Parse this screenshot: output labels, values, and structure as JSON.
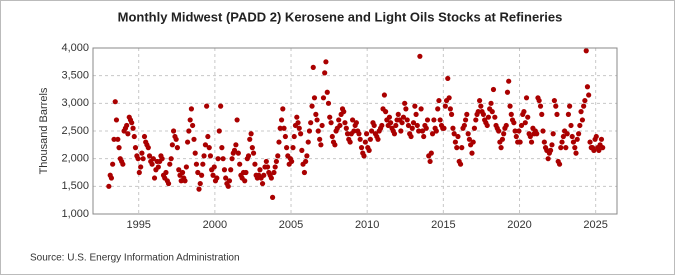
{
  "chart_data": {
    "type": "scatter",
    "title": "Monthly Midwest (PADD 2) Kerosene and Light Oils Stocks at Refineries",
    "y_label": "Thousand Barrels",
    "source": "Source: U.S. Energy Information Administration",
    "color": "#aa0000",
    "grid": true,
    "xlim": [
      1992,
      2026.4
    ],
    "xticks": [
      1995,
      2000,
      2005,
      2010,
      2015,
      2020,
      2025
    ],
    "ylim": [
      1000,
      4000
    ],
    "yticks": [
      {
        "value": 1000,
        "label": "1,000"
      },
      {
        "value": 1500,
        "label": "1,500"
      },
      {
        "value": 2000,
        "label": "2,000"
      },
      {
        "value": 2500,
        "label": "2,500"
      },
      {
        "value": 3000,
        "label": "3,000"
      },
      {
        "value": 3500,
        "label": "3,500"
      },
      {
        "value": 4000,
        "label": "4,000"
      }
    ],
    "x": [
      1993.04,
      1993.13,
      1993.21,
      1993.29,
      1993.38,
      1993.46,
      1993.54,
      1993.63,
      1993.71,
      1993.79,
      1993.88,
      1993.96,
      1994.04,
      1994.13,
      1994.21,
      1994.29,
      1994.38,
      1994.46,
      1994.54,
      1994.63,
      1994.71,
      1994.79,
      1994.88,
      1994.96,
      1995.04,
      1995.13,
      1995.21,
      1995.29,
      1995.38,
      1995.46,
      1995.54,
      1995.63,
      1995.71,
      1995.79,
      1995.88,
      1995.96,
      1996.04,
      1996.13,
      1996.21,
      1996.29,
      1996.38,
      1996.46,
      1996.54,
      1996.63,
      1996.71,
      1996.79,
      1996.88,
      1996.96,
      1997.04,
      1997.13,
      1997.21,
      1997.29,
      1997.38,
      1997.46,
      1997.54,
      1997.63,
      1997.71,
      1997.79,
      1997.88,
      1997.96,
      1998.04,
      1998.13,
      1998.21,
      1998.29,
      1998.38,
      1998.46,
      1998.54,
      1998.63,
      1998.71,
      1998.79,
      1998.88,
      1998.96,
      1999.04,
      1999.13,
      1999.21,
      1999.29,
      1999.38,
      1999.46,
      1999.54,
      1999.63,
      1999.71,
      1999.79,
      1999.88,
      1999.96,
      2000.04,
      2000.13,
      2000.21,
      2000.29,
      2000.38,
      2000.46,
      2000.54,
      2000.63,
      2000.71,
      2000.79,
      2000.88,
      2000.96,
      2001.04,
      2001.13,
      2001.21,
      2001.29,
      2001.38,
      2001.46,
      2001.54,
      2001.63,
      2001.71,
      2001.79,
      2001.88,
      2001.96,
      2002.04,
      2002.13,
      2002.21,
      2002.29,
      2002.38,
      2002.46,
      2002.54,
      2002.63,
      2002.71,
      2002.79,
      2002.88,
      2002.96,
      2003.04,
      2003.13,
      2003.21,
      2003.29,
      2003.38,
      2003.46,
      2003.54,
      2003.63,
      2003.71,
      2003.79,
      2003.88,
      2003.96,
      2004.04,
      2004.13,
      2004.21,
      2004.29,
      2004.38,
      2004.46,
      2004.54,
      2004.63,
      2004.71,
      2004.79,
      2004.88,
      2004.96,
      2005.04,
      2005.13,
      2005.21,
      2005.29,
      2005.38,
      2005.46,
      2005.54,
      2005.63,
      2005.71,
      2005.79,
      2005.88,
      2005.96,
      2006.04,
      2006.13,
      2006.21,
      2006.29,
      2006.38,
      2006.46,
      2006.54,
      2006.63,
      2006.71,
      2006.79,
      2006.88,
      2006.96,
      2007.04,
      2007.13,
      2007.21,
      2007.29,
      2007.38,
      2007.46,
      2007.54,
      2007.63,
      2007.71,
      2007.79,
      2007.88,
      2007.96,
      2008.04,
      2008.13,
      2008.21,
      2008.29,
      2008.38,
      2008.46,
      2008.54,
      2008.63,
      2008.71,
      2008.79,
      2008.88,
      2008.96,
      2009.04,
      2009.13,
      2009.21,
      2009.29,
      2009.38,
      2009.46,
      2009.54,
      2009.63,
      2009.71,
      2009.79,
      2009.88,
      2009.96,
      2010.04,
      2010.13,
      2010.21,
      2010.29,
      2010.38,
      2010.46,
      2010.54,
      2010.63,
      2010.71,
      2010.79,
      2010.88,
      2010.96,
      2011.04,
      2011.13,
      2011.21,
      2011.29,
      2011.38,
      2011.46,
      2011.54,
      2011.63,
      2011.71,
      2011.79,
      2011.88,
      2011.96,
      2012.04,
      2012.13,
      2012.21,
      2012.29,
      2012.38,
      2012.46,
      2012.54,
      2012.63,
      2012.71,
      2012.79,
      2012.88,
      2012.96,
      2013.04,
      2013.13,
      2013.21,
      2013.29,
      2013.38,
      2013.46,
      2013.54,
      2013.63,
      2013.71,
      2013.79,
      2013.88,
      2013.96,
      2014.04,
      2014.13,
      2014.21,
      2014.29,
      2014.38,
      2014.46,
      2014.54,
      2014.63,
      2014.71,
      2014.79,
      2014.88,
      2014.96,
      2015.04,
      2015.13,
      2015.21,
      2015.29,
      2015.38,
      2015.46,
      2015.54,
      2015.63,
      2015.71,
      2015.79,
      2015.88,
      2015.96,
      2016.04,
      2016.13,
      2016.21,
      2016.29,
      2016.38,
      2016.46,
      2016.54,
      2016.63,
      2016.71,
      2016.79,
      2016.88,
      2016.96,
      2017.04,
      2017.13,
      2017.21,
      2017.29,
      2017.38,
      2017.46,
      2017.54,
      2017.63,
      2017.71,
      2017.79,
      2017.88,
      2017.96,
      2018.04,
      2018.13,
      2018.21,
      2018.29,
      2018.38,
      2018.46,
      2018.54,
      2018.63,
      2018.71,
      2018.79,
      2018.88,
      2018.96,
      2019.04,
      2019.13,
      2019.21,
      2019.29,
      2019.38,
      2019.46,
      2019.54,
      2019.63,
      2019.71,
      2019.79,
      2019.88,
      2019.96,
      2020.04,
      2020.13,
      2020.21,
      2020.29,
      2020.38,
      2020.46,
      2020.54,
      2020.63,
      2020.71,
      2020.79,
      2020.88,
      2020.96,
      2021.04,
      2021.13,
      2021.21,
      2021.29,
      2021.38,
      2021.46,
      2021.54,
      2021.63,
      2021.71,
      2021.79,
      2021.88,
      2021.96,
      2022.04,
      2022.13,
      2022.21,
      2022.29,
      2022.38,
      2022.46,
      2022.54,
      2022.63,
      2022.71,
      2022.79,
      2022.88,
      2022.96,
      2023.04,
      2023.13,
      2023.21,
      2023.29,
      2023.38,
      2023.46,
      2023.54,
      2023.63,
      2023.71,
      2023.79,
      2023.88,
      2023.96,
      2024.04,
      2024.13,
      2024.21,
      2024.29,
      2024.38,
      2024.46,
      2024.54,
      2024.63,
      2024.71,
      2024.79,
      2024.88,
      2024.96,
      2025.04,
      2025.13,
      2025.21,
      2025.29,
      2025.38,
      2025.46
    ],
    "values": [
      1500,
      1700,
      1650,
      1900,
      2350,
      3030,
      2700,
      2350,
      2200,
      2000,
      1950,
      1900,
      2500,
      2550,
      2600,
      2450,
      2750,
      2700,
      2650,
      2550,
      2400,
      2200,
      2050,
      2000,
      1750,
      1850,
      2100,
      2000,
      2400,
      2300,
      2250,
      2200,
      2050,
      1950,
      1900,
      2000,
      1650,
      1800,
      1950,
      1850,
      1950,
      2050,
      2000,
      1700,
      1650,
      1750,
      1600,
      1550,
      1900,
      2000,
      2250,
      2500,
      2400,
      2350,
      2200,
      1800,
      1700,
      1600,
      1750,
      1650,
      1600,
      1850,
      2300,
      2500,
      2700,
      2900,
      2600,
      2350,
      2100,
      1900,
      1750,
      1450,
      1550,
      1700,
      1900,
      2050,
      2250,
      2950,
      2400,
      2200,
      2050,
      1800,
      1700,
      1850,
      1600,
      1650,
      2000,
      2500,
      2950,
      2200,
      2000,
      1800,
      1650,
      1550,
      1500,
      1600,
      1800,
      2000,
      2100,
      2150,
      2250,
      2700,
      2100,
      1900,
      1700,
      1650,
      1750,
      1600,
      1750,
      2000,
      2050,
      2350,
      2450,
      2200,
      2100,
      1900,
      1700,
      1650,
      1700,
      1800,
      1650,
      1550,
      1700,
      1850,
      1950,
      1850,
      1750,
      1700,
      1650,
      1300,
      1750,
      1850,
      1950,
      2050,
      2300,
      2550,
      2700,
      2900,
      2550,
      2400,
      2200,
      2050,
      1900,
      2000,
      1950,
      2200,
      2400,
      2600,
      2750,
      2650,
      2550,
      2450,
      2150,
      1900,
      1750,
      1950,
      2050,
      2300,
      2500,
      2650,
      2950,
      3650,
      3100,
      2800,
      2700,
      2500,
      2350,
      2250,
      2600,
      3100,
      3550,
      3750,
      3200,
      3000,
      2750,
      2650,
      2400,
      2300,
      2250,
      2500,
      2550,
      2700,
      2600,
      2800,
      2900,
      2850,
      2650,
      2550,
      2450,
      2350,
      2300,
      2450,
      2700,
      2500,
      2600,
      2650,
      2500,
      2450,
      2350,
      2200,
      2100,
      2050,
      2300,
      2450,
      2200,
      2150,
      2350,
      2500,
      2650,
      2600,
      2450,
      2400,
      2350,
      2500,
      2550,
      2600,
      2900,
      3150,
      2850,
      2700,
      2600,
      2750,
      2650,
      2550,
      2500,
      2450,
      2600,
      2700,
      2800,
      2700,
      2500,
      2650,
      2750,
      3000,
      2900,
      2700,
      2600,
      2450,
      2400,
      2550,
      2650,
      2950,
      2800,
      2600,
      2500,
      3850,
      2900,
      2500,
      2400,
      2600,
      2550,
      2700,
      2050,
      1950,
      2100,
      2450,
      2700,
      2550,
      2500,
      2900,
      3050,
      2700,
      2600,
      2550,
      2550,
      2950,
      3050,
      3450,
      3100,
      2900,
      2800,
      2550,
      2450,
      2300,
      2200,
      2400,
      1950,
      1900,
      2200,
      2550,
      2600,
      2700,
      2800,
      2450,
      2350,
      2250,
      2100,
      2300,
      2550,
      2700,
      2800,
      2850,
      3050,
      2950,
      2850,
      2800,
      2700,
      2650,
      2600,
      2750,
      2900,
      3000,
      2850,
      3250,
      2750,
      2600,
      2550,
      2500,
      2300,
      2200,
      2350,
      2450,
      2550,
      2600,
      3200,
      3400,
      2950,
      2800,
      2700,
      2650,
      2500,
      2400,
      2300,
      2500,
      2300,
      2600,
      2800,
      2850,
      2650,
      3100,
      2750,
      2450,
      2400,
      2300,
      2550,
      2450,
      2500,
      2450,
      3100,
      3050,
      2950,
      2800,
      2500,
      2300,
      2200,
      2150,
      2000,
      2100,
      2150,
      2250,
      2450,
      3050,
      2950,
      2800,
      1950,
      1900,
      2200,
      2300,
      2400,
      2500,
      2200,
      2450,
      2800,
      2950,
      2600,
      2400,
      2300,
      2200,
      2100,
      2350,
      2450,
      2600,
      2850,
      2700,
      2950,
      3050,
      3950,
      3300,
      3150,
      2300,
      2200,
      2200,
      2150,
      2350,
      2400,
      2200,
      2150,
      2250,
      2350,
      2200
    ]
  }
}
